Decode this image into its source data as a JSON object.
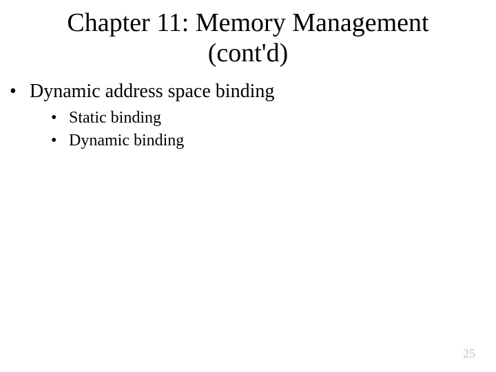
{
  "title_line1": "Chapter 11: Memory Management",
  "title_line2": "(cont'd)",
  "bullets": {
    "main": "Dynamic address space binding",
    "sub1": "Static binding",
    "sub2": "Dynamic binding"
  },
  "page_number": "25",
  "colors": {
    "background": "#ffffff",
    "text": "#000000",
    "pagenum": "#bfbfbf"
  },
  "fonts": {
    "family": "Times New Roman",
    "title_size_pt": 38,
    "level1_size_pt": 28,
    "level2_size_pt": 24,
    "pagenum_size_pt": 18
  }
}
